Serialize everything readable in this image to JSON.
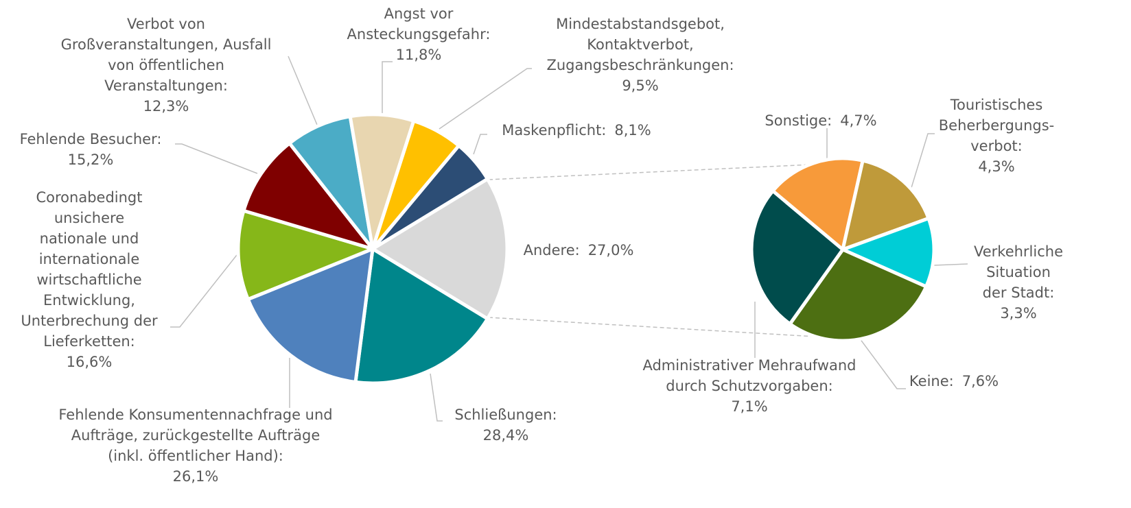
{
  "chart_data": [
    {
      "type": "pie",
      "categories": [
        "Andere:",
        "Schließungen:",
        "Fehlende Konsumentennachfrage und\nAufträge, zurückgestellte Aufträge\n(inkl. öffentlicher Hand):",
        "Coronabedingt\nunsichere\nnationale und\ninternationale\nwirtschaftliche\nEntwicklung,\nUnterbrechung der\nLieferketten:",
        "Fehlende Besucher:",
        "Verbot von\nGroßveranstaltungen, Ausfall\nvon öffentlichen\nVeranstaltungen:",
        "Angst vor\nAnsteckungsgefahr:",
        "Mindestabstandsgebot,\nKontaktverbot,\nZugangsbeschränkungen:",
        "Maskenpflicht:"
      ],
      "values": [
        27.0,
        28.4,
        26.1,
        16.6,
        15.2,
        12.3,
        11.8,
        9.5,
        8.1
      ],
      "value_labels": [
        "27,0%",
        "28,4%",
        "26,1%",
        "16,6%",
        "15,2%",
        "12,3%",
        "11,8%",
        "9,5%",
        "8,1%"
      ],
      "colors": [
        "#d9d9d9",
        "#00868b",
        "#4f81bd",
        "#86b719",
        "#7f0000",
        "#4bacc6",
        "#e8d6b0",
        "#ffc000",
        "#2c4d75"
      ]
    },
    {
      "type": "pie",
      "categories": [
        "Sonstige:",
        "Touristisches\nBeherbergungs-\nverbot:",
        "Verkehrliche\nSituation\nder Stadt:",
        "Keine:",
        "Administrativer Mehraufwand\ndurch Schutzvorgaben:"
      ],
      "values": [
        4.7,
        4.3,
        3.3,
        7.6,
        7.1
      ],
      "value_labels": [
        "4,7%",
        "4,3%",
        "3,3%",
        "7,6%",
        "7,1%"
      ],
      "colors": [
        "#f79a3a",
        "#bf9a3a",
        "#00cdd6",
        "#4d6f12",
        "#004c4c"
      ]
    }
  ]
}
